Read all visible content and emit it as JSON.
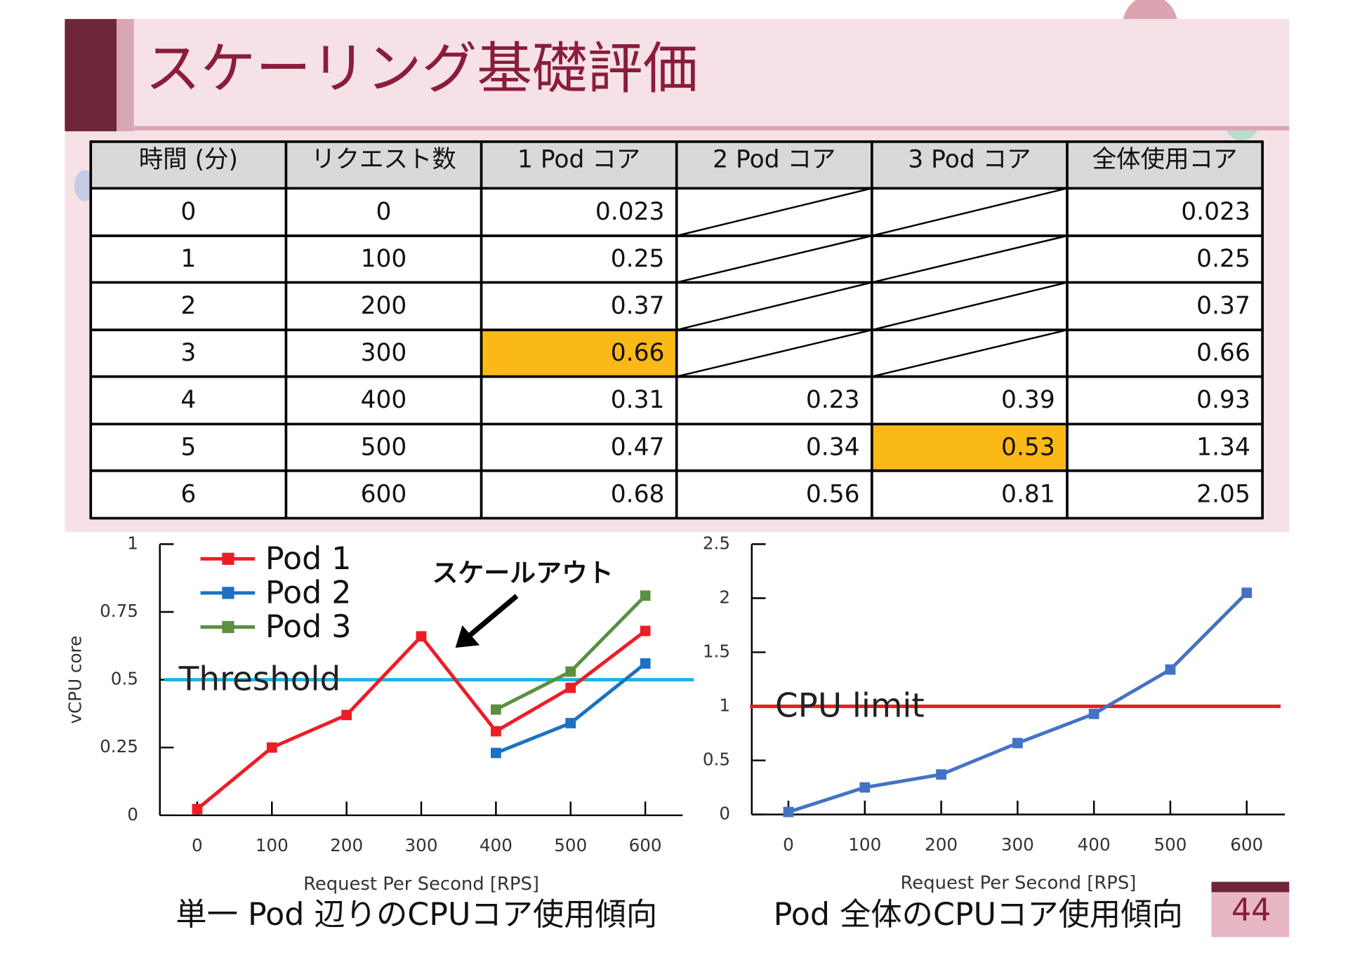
{
  "title": "スケーリング基礎評価",
  "table": {
    "headers": [
      "時間 (分)",
      "リクエスト数",
      "1 Pod コア",
      "2 Pod コア",
      "3 Pod コア",
      "全体使用コア"
    ],
    "rows": [
      [
        0,
        0,
        0.023,
        null,
        null,
        0.023
      ],
      [
        1,
        100,
        0.25,
        null,
        null,
        0.25
      ],
      [
        2,
        200,
        0.37,
        null,
        null,
        0.37
      ],
      [
        3,
        300,
        0.66,
        null,
        null,
        0.66
      ],
      [
        4,
        400,
        0.31,
        0.23,
        0.39,
        0.93
      ],
      [
        5,
        500,
        0.47,
        0.34,
        0.53,
        1.34
      ],
      [
        6,
        600,
        0.68,
        0.56,
        0.81,
        2.05
      ]
    ],
    "highlight": {
      "color": "#fbb917",
      "cells": [
        [
          3,
          2
        ],
        [
          5,
          4
        ]
      ]
    }
  },
  "chart_data": [
    {
      "type": "line",
      "x": [
        0,
        100,
        200,
        300,
        400,
        500,
        600
      ],
      "series": [
        {
          "name": "Pod 1",
          "color": "#ee1c25",
          "values": [
            0.023,
            0.25,
            0.37,
            0.66,
            0.31,
            0.47,
            0.68
          ]
        },
        {
          "name": "Pod 2",
          "color": "#1b72c2",
          "values": [
            null,
            null,
            null,
            null,
            0.23,
            0.34,
            0.56
          ]
        },
        {
          "name": "Pod 3",
          "color": "#5a9040",
          "values": [
            null,
            null,
            null,
            null,
            0.39,
            0.53,
            0.81
          ]
        }
      ],
      "xlim": [
        -50,
        650
      ],
      "xticks": [
        0,
        100,
        200,
        300,
        400,
        500,
        600
      ],
      "ylim": [
        0,
        1
      ],
      "yticks": [
        0,
        0.25,
        0.5,
        0.75,
        1
      ],
      "x_label": "Request Per Second [RPS]",
      "y_label": "vCPU core",
      "legend": "upper left",
      "reference_lines": [
        {
          "value": 0.5,
          "label": "Threshold",
          "color": "#1eb4e6"
        }
      ],
      "annotations": [
        {
          "text": "スケールアウト"
        }
      ],
      "caption": "単一 Pod 辺りのCPUコア使用傾向"
    },
    {
      "type": "line",
      "x": [
        0,
        100,
        200,
        300,
        400,
        500,
        600
      ],
      "series": [
        {
          "color": "#4472c4",
          "values": [
            0.023,
            0.25,
            0.37,
            0.66,
            0.93,
            1.34,
            2.05
          ]
        }
      ],
      "xlim": [
        -48,
        650
      ],
      "xticks": [
        0,
        100,
        200,
        300,
        400,
        500,
        600
      ],
      "ylim": [
        0,
        2.5
      ],
      "yticks": [
        0,
        0.5,
        1,
        1.5,
        2,
        2.5
      ],
      "x_label": "Request Per Second [RPS]",
      "reference_lines": [
        {
          "value": 1,
          "label": "CPU limit",
          "color": "#ee1c25"
        }
      ],
      "caption": "Pod 全体のCPUコア使用傾向"
    }
  ],
  "page_number": 44
}
